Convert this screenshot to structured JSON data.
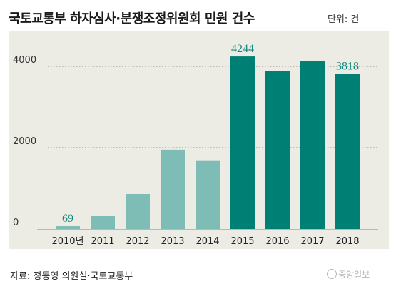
{
  "header": {
    "title": "국토교통부 하자심사·분쟁조정위원회 민원 건수",
    "unit": "단위: 건"
  },
  "footer": {
    "source": "자료: 정동영 의원실·국토교통부",
    "logo_text": "중앙일보"
  },
  "colors": {
    "bar_light": "#7dbdb6",
    "bar_dark": "#007f75",
    "label": "#148a80",
    "panel": "#ecece4"
  },
  "chart_data": {
    "type": "bar",
    "categories": [
      "2010년",
      "2011",
      "2012",
      "2013",
      "2014",
      "2015",
      "2016",
      "2017",
      "2018"
    ],
    "values": [
      69,
      320,
      860,
      1950,
      1690,
      4244,
      3880,
      4130,
      3818
    ],
    "highlight_from_index": 5,
    "data_labels": [
      {
        "index": 0,
        "text": "69"
      },
      {
        "index": 5,
        "text": "4244"
      },
      {
        "index": 8,
        "text": "3818"
      }
    ],
    "yticks": [
      "0",
      "2000",
      "4000"
    ],
    "ytick_values": [
      0,
      2000,
      4000
    ],
    "ylim": [
      0,
      4700
    ],
    "grid": "dotted horizontal at 2000 and 4000"
  }
}
